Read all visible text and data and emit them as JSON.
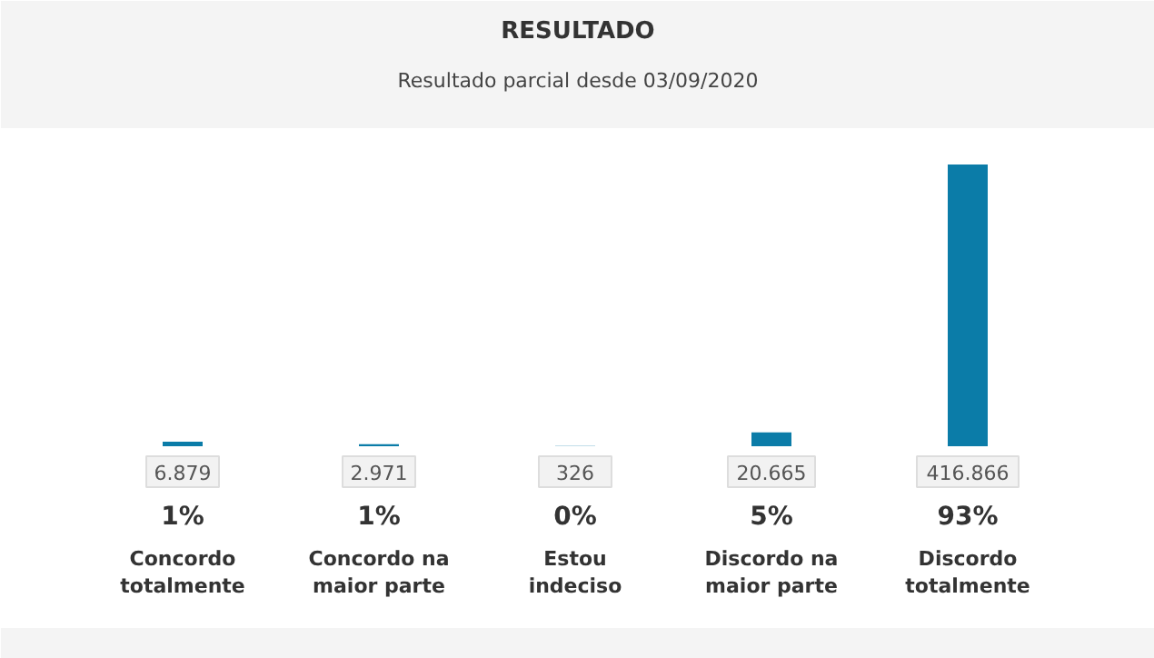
{
  "chart_data": {
    "type": "bar",
    "title": "RESULTADO",
    "subtitle": "Resultado parcial desde 03/09/2020",
    "categories": [
      "Concordo totalmente",
      "Concordo na maior parte",
      "Estou indeciso",
      "Discordo na maior parte",
      "Discordo totalmente"
    ],
    "values": [
      6879,
      2971,
      326,
      20665,
      416866
    ],
    "value_labels": [
      "6.879",
      "2.971",
      "326",
      "20.665",
      "416.866"
    ],
    "color": "#0b7ca8",
    "annotations": [
      "1%",
      "1%",
      "0%",
      "5%",
      "93%"
    ]
  }
}
